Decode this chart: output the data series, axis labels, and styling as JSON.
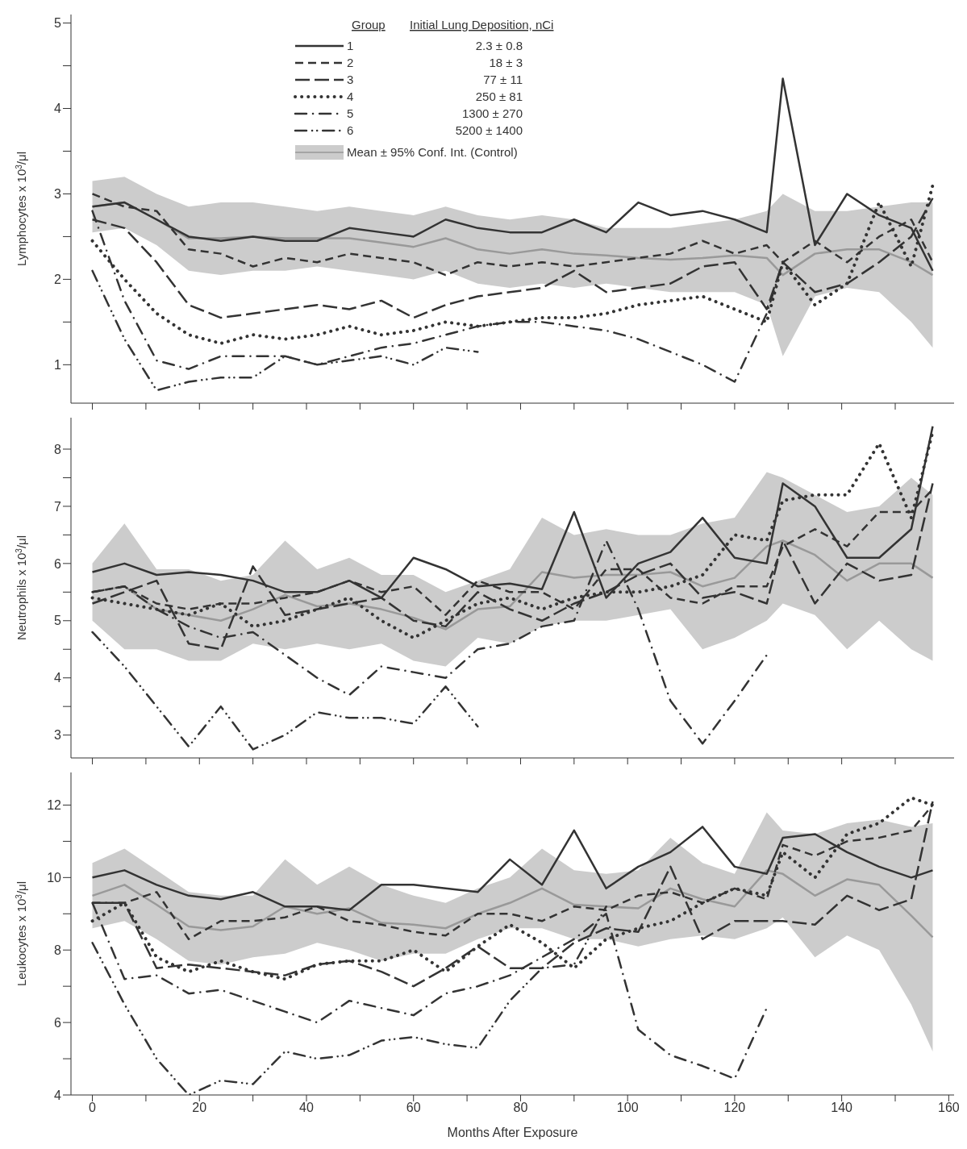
{
  "chart_data": [
    {
      "type": "line",
      "ylabel": "Lymphocytes x 10$^{3}$/μl",
      "legend": "top",
      "legend_title": "Group",
      "annotations": [
        "Initial Lung Deposition, nCi",
        "2.3 ± 0.8",
        "18 ± 3",
        "77 ± 11",
        "250 ± 81",
        "1300 ± 270",
        "5200 ± 1400"
      ],
      "tick_labels": "y",
      "xlim": [
        -4,
        161
      ],
      "xticks": [
        {
          "value": 0,
          "label": null
        },
        {
          "value": 10,
          "label": null
        },
        {
          "value": 20,
          "label": null
        },
        {
          "value": 30,
          "label": null
        },
        {
          "value": 40,
          "label": null
        },
        {
          "value": 50,
          "label": null
        },
        {
          "value": 60,
          "label": null
        },
        {
          "value": 70,
          "label": null
        },
        {
          "value": 80,
          "label": null
        },
        {
          "value": 90,
          "label": null
        },
        {
          "value": 100,
          "label": null
        },
        {
          "value": 110,
          "label": null
        },
        {
          "value": 120,
          "label": null
        },
        {
          "value": 130,
          "label": null
        },
        {
          "value": 140,
          "label": null
        },
        {
          "value": 150,
          "label": null
        }
      ],
      "ylim": [
        0.55,
        5.1
      ],
      "yticks": [
        1,
        {
          "value": 1.5,
          "label": null
        },
        2,
        {
          "value": 2.5,
          "label": null
        },
        3,
        {
          "value": 3.5,
          "label": null
        },
        4,
        {
          "value": 4.5,
          "label": null
        },
        5
      ],
      "x": [
        0,
        6,
        12,
        18,
        24,
        30,
        36,
        42,
        48,
        54,
        60,
        66,
        72,
        78,
        84,
        90,
        96,
        102,
        108,
        114,
        120,
        126,
        129,
        135,
        141,
        147,
        153,
        157
      ],
      "series": [
        {
          "type": "line",
          "name": "Mean ± 95% Conf. Int. (Control)",
          "color": "#999999",
          "line_style": "solid",
          "values": [
            2.85,
            2.9,
            2.7,
            2.48,
            2.48,
            2.5,
            2.48,
            2.48,
            2.48,
            2.43,
            2.38,
            2.48,
            2.35,
            2.3,
            2.35,
            2.3,
            2.28,
            2.25,
            2.23,
            2.25,
            2.28,
            2.25,
            2.05,
            2.3,
            2.35,
            2.35,
            2.2,
            2.05
          ],
          "lower": [
            2.55,
            2.6,
            2.4,
            2.1,
            2.05,
            2.1,
            2.1,
            2.15,
            2.1,
            2.05,
            2.0,
            2.1,
            1.95,
            1.9,
            1.95,
            1.9,
            1.95,
            1.9,
            1.85,
            1.85,
            1.85,
            1.7,
            1.1,
            1.8,
            1.9,
            1.85,
            1.5,
            1.2
          ],
          "upper": [
            3.15,
            3.2,
            3.0,
            2.85,
            2.9,
            2.9,
            2.85,
            2.8,
            2.85,
            2.8,
            2.75,
            2.85,
            2.75,
            2.7,
            2.75,
            2.7,
            2.6,
            2.6,
            2.6,
            2.65,
            2.7,
            2.8,
            3.0,
            2.8,
            2.8,
            2.85,
            2.9,
            2.9
          ]
        },
        {
          "name": "1",
          "color": "#333333",
          "line_style": "solid",
          "values": [
            2.85,
            2.9,
            2.7,
            2.5,
            2.45,
            2.5,
            2.45,
            2.45,
            2.6,
            2.55,
            2.5,
            2.7,
            2.6,
            2.55,
            2.55,
            2.7,
            2.55,
            2.9,
            2.75,
            2.8,
            2.7,
            2.55,
            4.35,
            2.4,
            3.0,
            2.75,
            2.6,
            2.1
          ]
        },
        {
          "name": "2",
          "color": "#333333",
          "line_style": "dashed",
          "values": [
            3.0,
            2.85,
            2.8,
            2.35,
            2.3,
            2.15,
            2.25,
            2.2,
            2.3,
            2.25,
            2.2,
            2.05,
            2.2,
            2.15,
            2.2,
            2.15,
            2.2,
            2.25,
            2.3,
            2.45,
            2.3,
            2.4,
            2.2,
            2.45,
            2.2,
            2.5,
            2.7,
            2.2
          ]
        },
        {
          "name": "3",
          "color": "#333333",
          "line_style": "longdash",
          "values": [
            2.7,
            2.6,
            2.2,
            1.7,
            1.55,
            1.6,
            1.65,
            1.7,
            1.65,
            1.75,
            1.55,
            1.7,
            1.8,
            1.85,
            1.9,
            2.1,
            1.85,
            1.9,
            1.95,
            2.15,
            2.2,
            1.65,
            2.2,
            1.85,
            1.95,
            2.2,
            2.5,
            2.95
          ]
        },
        {
          "name": "4",
          "color": "#333333",
          "line_style": "dotted",
          "values": [
            2.45,
            2.0,
            1.6,
            1.35,
            1.25,
            1.35,
            1.3,
            1.35,
            1.45,
            1.35,
            1.4,
            1.5,
            1.45,
            1.5,
            1.55,
            1.55,
            1.6,
            1.7,
            1.75,
            1.8,
            1.65,
            1.5,
            2.2,
            1.7,
            1.95,
            2.9,
            2.15,
            3.1
          ]
        },
        {
          "name": "5",
          "color": "#333333",
          "line_style": "dashdot",
          "values": [
            2.8,
            1.75,
            1.05,
            0.95,
            1.1,
            1.1,
            1.1,
            1.0,
            1.1,
            1.2,
            1.25,
            1.35,
            1.45,
            1.5,
            1.5,
            1.45,
            1.4,
            1.3,
            1.15,
            1.0,
            0.8,
            1.6,
            2.2,
            null,
            null,
            null,
            null,
            null
          ]
        },
        {
          "name": "6",
          "color": "#333333",
          "line_style": "dashdotdot",
          "values": [
            2.1,
            1.3,
            0.7,
            0.8,
            0.85,
            0.85,
            1.1,
            1.0,
            1.05,
            1.1,
            1.0,
            1.2,
            1.15,
            null,
            null,
            null,
            null,
            null,
            null,
            null,
            null,
            null,
            null,
            null,
            null,
            null,
            null,
            null
          ]
        }
      ]
    },
    {
      "type": "line",
      "ylabel": "Neutrophils x 10$^{3}$/μl",
      "tick_labels": "y",
      "xlim": [
        -4,
        161
      ],
      "xticks": [
        {
          "value": 0,
          "label": null
        },
        {
          "value": 10,
          "label": null
        },
        {
          "value": 20,
          "label": null
        },
        {
          "value": 30,
          "label": null
        },
        {
          "value": 40,
          "label": null
        },
        {
          "value": 50,
          "label": null
        },
        {
          "value": 60,
          "label": null
        },
        {
          "value": 70,
          "label": null
        },
        {
          "value": 80,
          "label": null
        },
        {
          "value": 90,
          "label": null
        },
        {
          "value": 100,
          "label": null
        },
        {
          "value": 110,
          "label": null
        },
        {
          "value": 120,
          "label": null
        },
        {
          "value": 130,
          "label": null
        },
        {
          "value": 140,
          "label": null
        },
        {
          "value": 150,
          "label": null
        }
      ],
      "ylim": [
        2.6,
        8.55
      ],
      "yticks": [
        3,
        {
          "value": 3.5,
          "label": null
        },
        4,
        {
          "value": 4.5,
          "label": null
        },
        5,
        {
          "value": 5.5,
          "label": null
        },
        6,
        {
          "value": 6.5,
          "label": null
        },
        7,
        {
          "value": 7.5,
          "label": null
        },
        8
      ],
      "x": [
        0,
        6,
        12,
        18,
        24,
        30,
        36,
        42,
        48,
        54,
        60,
        66,
        72,
        78,
        84,
        90,
        96,
        102,
        108,
        114,
        120,
        126,
        129,
        135,
        141,
        147,
        153,
        157
      ],
      "series": [
        {
          "type": "line",
          "color": "#999999",
          "line_style": "solid",
          "values": [
            5.5,
            5.6,
            5.2,
            5.1,
            5.0,
            5.2,
            5.45,
            5.25,
            5.3,
            5.2,
            5.05,
            4.85,
            5.2,
            5.25,
            5.85,
            5.75,
            5.8,
            5.8,
            5.85,
            5.6,
            5.75,
            6.3,
            6.4,
            6.15,
            5.7,
            6.0,
            6.0,
            5.75
          ],
          "lower": [
            5.0,
            4.5,
            4.5,
            4.3,
            4.3,
            4.6,
            4.5,
            4.6,
            4.5,
            4.6,
            4.3,
            4.2,
            4.7,
            4.6,
            4.9,
            5.0,
            5.0,
            5.1,
            5.2,
            4.5,
            4.7,
            5.0,
            5.3,
            5.1,
            4.5,
            5.0,
            4.5,
            4.3
          ],
          "upper": [
            6.0,
            6.7,
            5.9,
            5.9,
            5.7,
            5.8,
            6.4,
            5.9,
            6.1,
            5.8,
            5.8,
            5.5,
            5.7,
            5.9,
            6.8,
            6.5,
            6.6,
            6.5,
            6.5,
            6.7,
            6.8,
            7.6,
            7.5,
            7.2,
            6.9,
            7.0,
            7.5,
            7.2
          ]
        },
        {
          "color": "#333333",
          "line_style": "solid",
          "values": [
            5.85,
            6.0,
            5.8,
            5.85,
            5.8,
            5.7,
            5.5,
            5.5,
            5.7,
            5.4,
            6.1,
            5.9,
            5.6,
            5.65,
            5.55,
            6.9,
            5.4,
            6.0,
            6.2,
            6.8,
            6.1,
            6.0,
            7.4,
            7.0,
            6.1,
            6.1,
            6.6,
            8.4
          ]
        },
        {
          "color": "#333333",
          "line_style": "dashed",
          "values": [
            5.5,
            5.6,
            5.3,
            5.2,
            5.3,
            5.3,
            5.4,
            5.5,
            5.7,
            5.5,
            5.6,
            5.1,
            5.7,
            5.5,
            5.5,
            5.2,
            5.9,
            5.9,
            5.4,
            5.3,
            5.6,
            5.6,
            6.3,
            6.6,
            6.3,
            6.9,
            6.9,
            7.3
          ]
        },
        {
          "color": "#333333",
          "line_style": "longdash",
          "values": [
            5.3,
            5.5,
            5.7,
            4.6,
            4.5,
            5.95,
            5.1,
            5.2,
            5.3,
            5.4,
            5.0,
            4.9,
            5.5,
            5.2,
            5.0,
            5.3,
            5.5,
            5.8,
            6.0,
            5.4,
            5.5,
            5.3,
            6.4,
            5.3,
            6.0,
            5.7,
            5.8,
            7.4
          ]
        },
        {
          "color": "#333333",
          "line_style": "dotted",
          "values": [
            5.4,
            5.3,
            5.2,
            5.1,
            5.3,
            4.9,
            5.0,
            5.2,
            5.4,
            5.0,
            4.7,
            5.0,
            5.3,
            5.4,
            5.2,
            5.4,
            5.5,
            5.5,
            5.6,
            5.8,
            6.5,
            6.4,
            7.1,
            7.2,
            7.2,
            8.1,
            6.8,
            8.3
          ]
        },
        {
          "color": "#333333",
          "line_style": "dashdot",
          "values": [
            5.5,
            5.6,
            5.2,
            4.9,
            4.7,
            4.8,
            4.4,
            4.0,
            3.7,
            4.2,
            4.1,
            4.0,
            4.5,
            4.6,
            4.9,
            5.0,
            6.4,
            5.2,
            3.6,
            2.85,
            3.6,
            4.4,
            null,
            null,
            null,
            null,
            null,
            null
          ]
        },
        {
          "color": "#333333",
          "line_style": "dashdotdot",
          "values": [
            4.8,
            4.2,
            3.5,
            2.8,
            3.5,
            2.75,
            3.0,
            3.4,
            3.3,
            3.3,
            3.2,
            3.85,
            3.15,
            null,
            null,
            null,
            null,
            null,
            null,
            null,
            null,
            null,
            null,
            null,
            null,
            null,
            null,
            null
          ]
        }
      ]
    },
    {
      "type": "line",
      "ylabel": "Leukocytes x 10$^{3}$/μl",
      "xlabel": "Months After Exposure",
      "xlim": [
        -4,
        161
      ],
      "xticks": [
        0,
        {
          "value": 10,
          "label": null
        },
        20,
        {
          "value": 30,
          "label": null
        },
        40,
        {
          "value": 50,
          "label": null
        },
        60,
        {
          "value": 70,
          "label": null
        },
        80,
        {
          "value": 90,
          "label": null
        },
        100,
        {
          "value": 110,
          "label": null
        },
        120,
        {
          "value": 130,
          "label": null
        },
        140,
        {
          "value": 150,
          "label": null
        },
        160
      ],
      "ylim": [
        4,
        12.9
      ],
      "yticks": [
        4,
        {
          "value": 5,
          "label": null
        },
        6,
        {
          "value": 7,
          "label": null
        },
        8,
        {
          "value": 9,
          "label": null
        },
        10,
        {
          "value": 11,
          "label": null
        },
        12
      ],
      "x": [
        0,
        6,
        12,
        18,
        24,
        30,
        36,
        42,
        48,
        54,
        60,
        66,
        72,
        78,
        84,
        90,
        96,
        102,
        108,
        114,
        120,
        126,
        129,
        135,
        141,
        147,
        153,
        157
      ],
      "series": [
        {
          "type": "line",
          "color": "#999999",
          "line_style": "solid",
          "values": [
            9.5,
            9.8,
            9.25,
            8.65,
            8.55,
            8.65,
            9.2,
            9.0,
            9.15,
            8.75,
            8.7,
            8.6,
            9.0,
            9.3,
            9.7,
            9.25,
            9.2,
            9.15,
            9.7,
            9.4,
            9.2,
            10.2,
            10.1,
            9.5,
            9.95,
            9.8,
            8.95,
            8.35
          ],
          "lower": [
            8.6,
            8.8,
            8.3,
            7.7,
            7.6,
            7.8,
            7.9,
            8.2,
            8.0,
            7.7,
            7.9,
            7.9,
            8.3,
            8.6,
            8.6,
            8.3,
            8.3,
            8.1,
            8.3,
            8.4,
            8.3,
            8.6,
            8.9,
            7.8,
            8.4,
            8.0,
            6.5,
            5.2
          ],
          "upper": [
            10.4,
            10.8,
            10.2,
            9.6,
            9.5,
            9.5,
            10.5,
            9.8,
            10.3,
            9.8,
            9.5,
            9.3,
            9.7,
            10.0,
            10.8,
            10.2,
            10.1,
            10.2,
            11.1,
            10.4,
            10.1,
            11.8,
            11.3,
            11.2,
            11.5,
            11.6,
            11.4,
            11.5
          ]
        },
        {
          "color": "#333333",
          "line_style": "solid",
          "values": [
            10.0,
            10.2,
            9.8,
            9.5,
            9.4,
            9.6,
            9.2,
            9.2,
            9.1,
            9.8,
            9.8,
            9.7,
            9.6,
            10.5,
            9.8,
            11.3,
            9.7,
            10.3,
            10.7,
            11.4,
            10.3,
            10.1,
            11.1,
            11.2,
            10.7,
            10.3,
            10.0,
            10.2
          ]
        },
        {
          "color": "#333333",
          "line_style": "dashed",
          "values": [
            9.3,
            9.3,
            9.6,
            8.3,
            8.8,
            8.8,
            8.9,
            9.2,
            8.8,
            8.7,
            8.5,
            8.4,
            9.0,
            9.0,
            8.8,
            9.2,
            9.1,
            9.5,
            9.6,
            9.3,
            9.7,
            9.4,
            10.9,
            10.6,
            11.0,
            11.1,
            11.3,
            12.0
          ]
        },
        {
          "color": "#333333",
          "line_style": "longdash",
          "values": [
            9.3,
            9.3,
            7.5,
            7.6,
            7.5,
            7.4,
            7.3,
            7.6,
            7.7,
            7.4,
            7.0,
            7.5,
            8.1,
            7.5,
            7.5,
            8.2,
            8.6,
            8.5,
            10.3,
            8.3,
            8.8,
            8.8,
            8.8,
            8.7,
            9.5,
            9.1,
            9.4,
            12.1
          ]
        },
        {
          "color": "#333333",
          "line_style": "dotted",
          "values": [
            8.8,
            9.3,
            7.8,
            7.4,
            7.7,
            7.4,
            7.2,
            7.6,
            7.7,
            7.7,
            8.0,
            7.4,
            8.1,
            8.7,
            8.2,
            7.5,
            8.3,
            8.6,
            8.8,
            9.3,
            9.7,
            9.5,
            10.7,
            10.0,
            11.2,
            11.5,
            12.2,
            12.0
          ]
        },
        {
          "color": "#333333",
          "line_style": "dashdot",
          "values": [
            9.3,
            7.2,
            7.3,
            6.8,
            6.9,
            6.6,
            6.3,
            6.0,
            6.6,
            6.4,
            6.2,
            6.8,
            7.0,
            7.3,
            7.8,
            8.3,
            9.0,
            5.8,
            5.1,
            4.8,
            4.45,
            6.4,
            null,
            null,
            null,
            null,
            null,
            null
          ]
        },
        {
          "color": "#333333",
          "line_style": "dashdotdot",
          "values": [
            8.2,
            6.5,
            5.0,
            4.0,
            4.4,
            4.3,
            5.2,
            5.0,
            5.1,
            5.5,
            5.6,
            5.4,
            5.3,
            6.6,
            7.5,
            7.6,
            9.2,
            null,
            null,
            null,
            null,
            null,
            null,
            null,
            null,
            null,
            null,
            null
          ]
        }
      ]
    }
  ]
}
